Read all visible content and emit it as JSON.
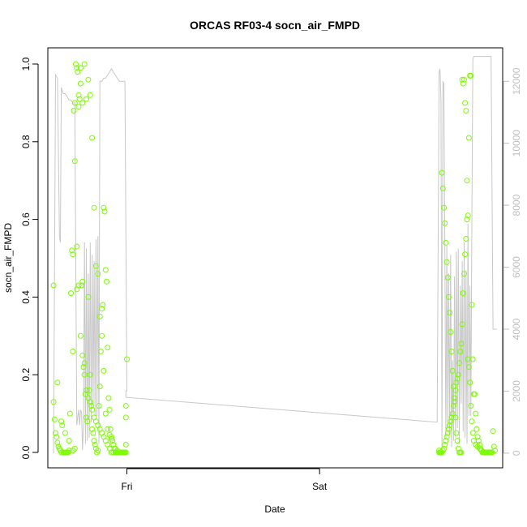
{
  "chart_data": {
    "type": "scatter",
    "title": "ORCAS RF03-4 socn_air_FMPD",
    "xlabel": "Date",
    "ylabel": "socn_air_FMPD",
    "x_ticks": [
      "Fri",
      "Sat"
    ],
    "y_ticks": [
      "0.0",
      "0.2",
      "0.4",
      "0.6",
      "0.8",
      "1.0"
    ],
    "y2_ticks": [
      "0",
      "2000",
      "4000",
      "6000",
      "8000",
      "10000",
      "12000"
    ],
    "ylim": [
      0,
      1
    ],
    "y2lim": [
      0,
      12500
    ],
    "x_domain": [
      -0.41,
      1.95
    ],
    "y2_domain": [
      -500,
      13000
    ],
    "colors": {
      "points": "#7cfc00",
      "line": "#c8c8c8",
      "right_axis": "#c0c0c0"
    },
    "series": [
      {
        "kind": "points",
        "x": [
          -0.38,
          -0.38,
          -0.375,
          -0.37,
          -0.365,
          -0.36,
          -0.355,
          -0.35,
          -0.345,
          -0.34,
          -0.335,
          -0.33,
          -0.325,
          -0.32,
          -0.315,
          -0.31,
          -0.305,
          -0.3,
          -0.295,
          -0.29,
          -0.285,
          -0.28,
          -0.275,
          -0.27,
          -0.265,
          -0.26,
          -0.255,
          -0.25,
          -0.245,
          -0.24,
          -0.235,
          -0.23,
          -0.225,
          -0.22,
          -0.215,
          -0.21,
          -0.205,
          -0.2,
          -0.195,
          -0.19,
          -0.185,
          -0.18,
          -0.175,
          -0.17,
          -0.165,
          -0.16,
          -0.155,
          -0.15,
          -0.145,
          -0.14,
          -0.135,
          -0.13,
          -0.125,
          -0.12,
          -0.115,
          -0.11,
          -0.105,
          -0.1,
          -0.095,
          -0.09,
          -0.085,
          -0.08,
          -0.075,
          -0.07,
          -0.065,
          -0.06,
          -0.055,
          -0.05,
          -0.045,
          -0.04,
          -0.035,
          -0.03,
          -0.025,
          -0.02,
          -0.015,
          -0.01,
          -0.005,
          0.0,
          -0.36,
          -0.34,
          -0.32,
          -0.3,
          -0.28,
          -0.27,
          -0.26,
          -0.25,
          -0.24,
          -0.23,
          -0.22,
          -0.21,
          -0.2,
          -0.19,
          -0.18,
          -0.17,
          -0.16,
          -0.15,
          -0.14,
          -0.13,
          -0.12,
          -0.11,
          -0.1,
          -0.09,
          -0.08,
          -0.07,
          -0.06,
          -0.05,
          -0.04,
          -0.03,
          -0.02,
          -0.01,
          -0.28,
          -0.27,
          -0.26,
          -0.25,
          -0.24,
          -0.23,
          -0.22,
          -0.21,
          -0.2,
          -0.19,
          -0.18,
          -0.17,
          -0.16,
          -0.15,
          -0.14,
          -0.13,
          -0.12,
          -0.11,
          -0.1,
          -0.09,
          -0.08,
          -0.07,
          -0.06,
          -0.05,
          -0.04,
          -0.03,
          -0.02,
          -0.01,
          -0.005,
          -0.005,
          -0.005,
          1.62,
          1.625,
          1.63,
          1.635,
          1.64,
          1.645,
          1.65,
          1.655,
          1.66,
          1.665,
          1.67,
          1.675,
          1.68,
          1.685,
          1.69,
          1.695,
          1.7,
          1.705,
          1.71,
          1.715,
          1.72,
          1.725,
          1.73,
          1.735,
          1.74,
          1.745,
          1.75,
          1.755,
          1.76,
          1.765,
          1.77,
          1.775,
          1.78,
          1.785,
          1.79,
          1.795,
          1.8,
          1.805,
          1.81,
          1.815,
          1.82,
          1.825,
          1.83,
          1.835,
          1.84,
          1.845,
          1.85,
          1.855,
          1.86,
          1.865,
          1.87,
          1.875,
          1.88,
          1.885,
          1.89,
          1.895,
          1.9,
          1.905,
          1.91,
          1.62,
          1.625,
          1.63,
          1.635,
          1.64,
          1.645,
          1.65,
          1.655,
          1.66,
          1.665,
          1.67,
          1.675,
          1.68,
          1.685,
          1.69,
          1.695,
          1.7,
          1.705,
          1.71,
          1.715,
          1.72,
          1.725,
          1.73,
          1.735,
          1.74,
          1.745,
          1.75,
          1.755,
          1.76,
          1.765,
          1.77,
          1.775,
          1.78,
          1.785,
          1.79,
          1.795,
          1.8,
          1.81,
          1.82,
          1.83,
          1.84,
          1.85,
          1.86,
          1.87,
          1.88,
          1.89
        ],
        "y": [
          0.43,
          0.13,
          0.085,
          0.05,
          0.04,
          0.025,
          0.015,
          0.01,
          0.005,
          0.0,
          0.07,
          0.0,
          0.0,
          0.0,
          0.0,
          0.0,
          0.0,
          0.005,
          0.1,
          0.41,
          0.52,
          0.51,
          0.88,
          0.9,
          1.0,
          0.99,
          0.98,
          0.92,
          0.91,
          0.95,
          0.43,
          0.44,
          0.22,
          0.23,
          0.15,
          0.09,
          0.08,
          0.4,
          0.16,
          0.2,
          0.12,
          0.06,
          0.05,
          0.03,
          0.02,
          0.01,
          0.0,
          0.005,
          0.12,
          0.17,
          0.26,
          0.37,
          0.38,
          0.63,
          0.62,
          0.47,
          0.44,
          0.27,
          0.14,
          0.11,
          0.06,
          0.04,
          0.03,
          0.02,
          0.01,
          0.0,
          0.0,
          0.0,
          0.0,
          0.0,
          0.0,
          0.0,
          0.0,
          0.0,
          0.0,
          0.0,
          0.02,
          0.24,
          0.18,
          0.08,
          0.05,
          0.03,
          0.26,
          0.75,
          0.53,
          0.89,
          0.99,
          0.9,
          1.0,
          0.91,
          0.96,
          0.92,
          0.81,
          0.63,
          0.48,
          0.46,
          0.35,
          0.3,
          0.21,
          0.1,
          0.06,
          0.045,
          0.035,
          0.02,
          0.01,
          0.005,
          0.0,
          0.0,
          0.0,
          0.0,
          0.005,
          0.01,
          0.42,
          0.43,
          0.3,
          0.25,
          0.2,
          0.16,
          0.14,
          0.13,
          0.11,
          0.09,
          0.08,
          0.07,
          0.06,
          0.05,
          0.04,
          0.03,
          0.02,
          0.01,
          0.0,
          0.0,
          0.0,
          0.0,
          0.0,
          0.0,
          0.0,
          0.0,
          0.0,
          0.12,
          0.09,
          0.0,
          0.0,
          0.0,
          0.72,
          0.68,
          0.63,
          0.59,
          0.54,
          0.49,
          0.45,
          0.4,
          0.36,
          0.31,
          0.26,
          0.21,
          0.17,
          0.13,
          0.09,
          0.05,
          0.03,
          0.01,
          0.0,
          0.0,
          0.0,
          0.96,
          0.95,
          0.96,
          0.9,
          0.88,
          0.7,
          0.61,
          0.81,
          0.97,
          0.97,
          0.38,
          0.24,
          0.15,
          0.15,
          0.1,
          0.06,
          0.04,
          0.03,
          0.02,
          0.01,
          0.005,
          0.0,
          0.0,
          0.0,
          0.0,
          0.0,
          0.0,
          0.0,
          0.0,
          0.0,
          0.0,
          0.0,
          0.055,
          0.015,
          0.005,
          0.005,
          0.0,
          0.0,
          0.0,
          0.005,
          0.01,
          0.02,
          0.03,
          0.04,
          0.05,
          0.06,
          0.07,
          0.08,
          0.09,
          0.1,
          0.12,
          0.14,
          0.16,
          0.18,
          0.19,
          0.2,
          0.23,
          0.26,
          0.28,
          0.33,
          0.41,
          0.46,
          0.51,
          0.55,
          0.6,
          0.24,
          0.22,
          0.18,
          0.12,
          0.08,
          0.05,
          0.03,
          0.02,
          0.015,
          0.01,
          0.005,
          0.0,
          0.0,
          0.0,
          0.0,
          0.0
        ]
      },
      {
        "kind": "line",
        "axis": "right",
        "x": [
          -0.38,
          -0.37,
          -0.36,
          -0.35,
          -0.345,
          -0.34,
          -0.33,
          -0.32,
          -0.31,
          -0.3,
          -0.29,
          -0.28,
          -0.27,
          -0.26,
          -0.25,
          -0.245,
          -0.24,
          -0.235,
          -0.23,
          -0.225,
          -0.22,
          -0.215,
          -0.21,
          -0.205,
          -0.2,
          -0.195,
          -0.19,
          -0.185,
          -0.18,
          -0.175,
          -0.17,
          -0.165,
          -0.16,
          -0.155,
          -0.15,
          -0.145,
          -0.14,
          -0.13,
          -0.12,
          -0.11,
          -0.1,
          -0.09,
          -0.08,
          -0.07,
          -0.06,
          -0.05,
          -0.04,
          -0.03,
          -0.02,
          -0.01,
          0.0,
          -0.005,
          -0.005,
          1.61,
          1.62,
          1.625,
          1.63,
          1.635,
          1.64,
          1.645,
          1.65,
          1.655,
          1.66,
          1.665,
          1.67,
          1.675,
          1.68,
          1.685,
          1.69,
          1.695,
          1.7,
          1.705,
          1.71,
          1.715,
          1.72,
          1.725,
          1.73,
          1.735,
          1.74,
          1.745,
          1.75,
          1.755,
          1.76,
          1.765,
          1.77,
          1.775,
          1.78,
          1.785,
          1.79,
          1.795,
          1.8,
          1.805,
          1.81,
          1.815,
          1.82,
          1.825,
          1.83,
          1.84,
          1.85,
          1.86,
          1.87,
          1.88,
          1.89,
          1.9,
          1.91,
          1.92
        ],
        "y": [
          0,
          12200,
          12100,
          7000,
          6800,
          11800,
          11600,
          11600,
          11500,
          11400,
          11400,
          11300,
          11300,
          900,
          1400,
          900,
          1400,
          1300,
          100,
          900,
          6800,
          300,
          6600,
          400,
          5800,
          500,
          6800,
          1000,
          6400,
          1500,
          6200,
          1200,
          6900,
          1200,
          7000,
          300,
          12000,
          12000,
          12100,
          12100,
          12200,
          12300,
          12400,
          12300,
          12200,
          12100,
          12000,
          12000,
          12000,
          12000,
          2000,
          2000,
          1800,
          1000,
          12300,
          12400,
          11400,
          200,
          12000,
          11900,
          6500,
          500,
          6700,
          800,
          5800,
          600,
          6400,
          200,
          3000,
          400,
          5700,
          500,
          6500,
          800,
          6600,
          300,
          5400,
          1600,
          6200,
          700,
          6800,
          500,
          5900,
          300,
          7400,
          1200,
          5400,
          1200,
          7500,
          12700,
          12800,
          12800,
          12800,
          12800,
          12800,
          12800,
          12800,
          12800,
          12800,
          12800,
          12800,
          12800,
          12800,
          4000,
          4000,
          4000
        ]
      }
    ]
  }
}
